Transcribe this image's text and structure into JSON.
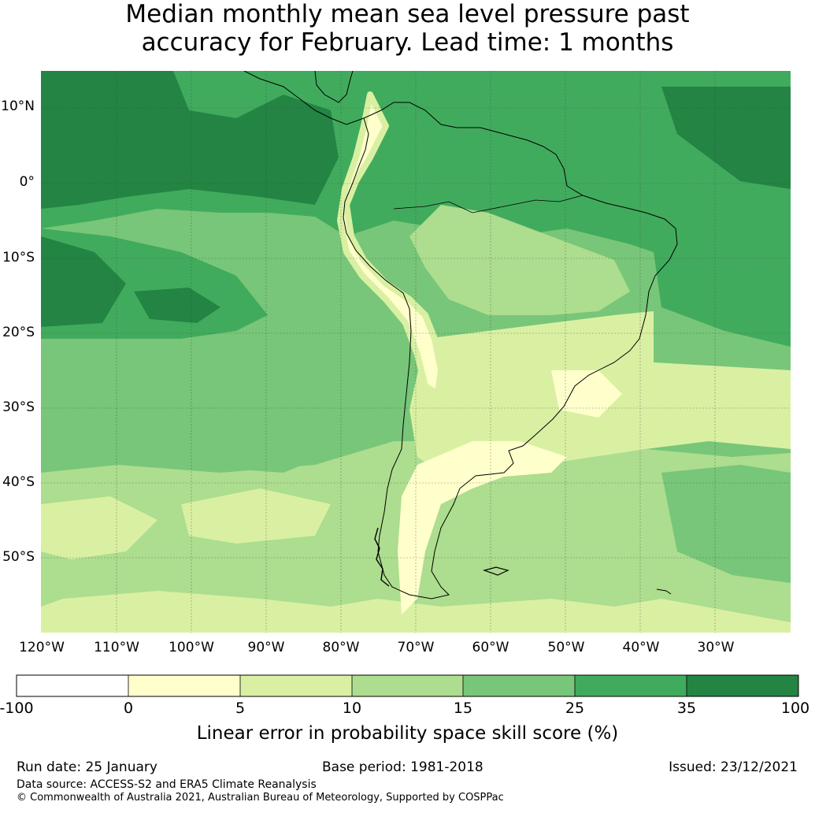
{
  "title": {
    "line1": "Median monthly mean sea level pressure past",
    "line2": "accuracy for February. Lead time: 1 months"
  },
  "map": {
    "lat_labels": [
      "10°N",
      "0°",
      "10°S",
      "20°S",
      "30°S",
      "40°S",
      "50°S"
    ],
    "lon_labels": [
      "120°W",
      "110°W",
      "100°W",
      "90°W",
      "80°W",
      "70°W",
      "60°W",
      "50°W",
      "40°W",
      "30°W"
    ]
  },
  "colorbar": {
    "ticks": [
      "-100",
      "0",
      "5",
      "10",
      "15",
      "25",
      "35",
      "100"
    ],
    "colors": [
      "#ffffff",
      "#ffffcc",
      "#d9f0a3",
      "#addd8e",
      "#78c679",
      "#41ab5d",
      "#238443"
    ],
    "label": "Linear error in probability space skill score (%)"
  },
  "footer": {
    "run_date": "Run date: 25 January",
    "base_period": "Base period: 1981-2018",
    "issued": "Issued: 23/12/2021",
    "data_source": "Data source: ACCESS-S2 and ERA5 Climate Reanalysis",
    "copyright": "© Commonwealth of Australia 2021, Australian Bureau of Meteorology, Supported by COSPPac"
  }
}
